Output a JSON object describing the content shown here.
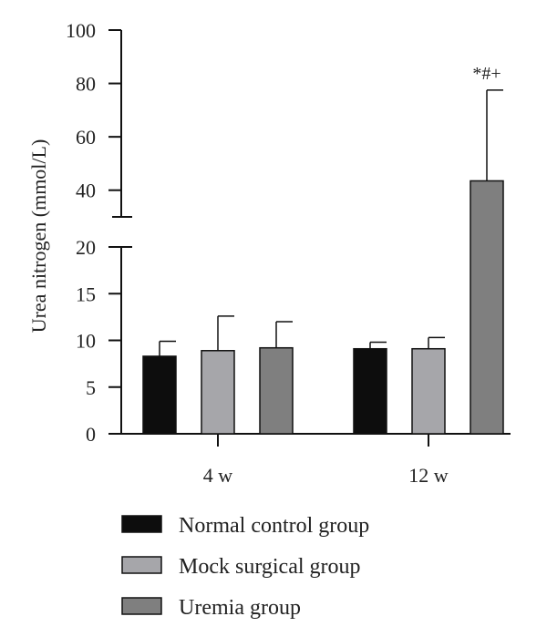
{
  "chart_data": {
    "type": "bar",
    "ylabel": "Urea nitrogen (mmol/L)",
    "categories": [
      "4 w",
      "12 w"
    ],
    "y_axis_break": {
      "lower_range": [
        0,
        20
      ],
      "upper_range": [
        30,
        100
      ]
    },
    "y_ticks_lower": [
      0,
      5,
      10,
      15,
      20
    ],
    "y_ticks_upper": [
      40,
      60,
      80,
      100
    ],
    "y_tick_labels_lower": [
      "0",
      "5",
      "10",
      "15",
      "20"
    ],
    "y_tick_labels_upper": [
      "40",
      "60",
      "80",
      "100"
    ],
    "series": [
      {
        "name": "Normal control group",
        "color": "#0d0d0d",
        "values": [
          8.3,
          9.1
        ],
        "error": [
          1.6,
          0.7
        ]
      },
      {
        "name": "Mock surgical group",
        "color": "#a6a6aa",
        "values": [
          8.9,
          9.1
        ],
        "error": [
          3.7,
          1.2
        ]
      },
      {
        "name": "Uremia group",
        "color": "#7f7f7f",
        "values": [
          9.2,
          43.5
        ],
        "error": [
          2.8,
          34.0
        ]
      }
    ],
    "annotations": [
      {
        "category": "12 w",
        "series": "Uremia group",
        "text": "*#+"
      }
    ],
    "legend_position": "bottom-left",
    "grid": false
  }
}
